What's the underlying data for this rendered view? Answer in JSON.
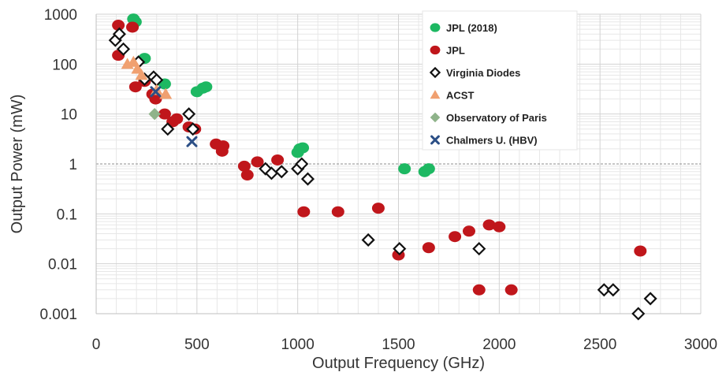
{
  "chart_data": {
    "type": "scatter",
    "xlabel": "Output Frequency (GHz)",
    "ylabel": "Output Power (mW)",
    "xlim": [
      0,
      3000
    ],
    "ylim": [
      0.001,
      1000
    ],
    "yscale": "log",
    "grid": true,
    "legend_position": "top-right",
    "x_ticks": [
      "0",
      "500",
      "1000",
      "1500",
      "2000",
      "2500",
      "3000"
    ],
    "y_ticks": [
      "1000",
      "100",
      "10",
      "1",
      "0.1",
      "0.01",
      "0.001"
    ],
    "series": [
      {
        "name": "JPL (2018)",
        "marker": "circle",
        "color": "#1db862",
        "points": [
          [
            185,
            800
          ],
          [
            195,
            700
          ],
          [
            240,
            130
          ],
          [
            340,
            40
          ],
          [
            500,
            28
          ],
          [
            530,
            33
          ],
          [
            545,
            35
          ],
          [
            1000,
            1.7
          ],
          [
            1010,
            2.0
          ],
          [
            1025,
            2.1
          ],
          [
            1530,
            0.8
          ],
          [
            1630,
            0.7
          ],
          [
            1650,
            0.8
          ]
        ]
      },
      {
        "name": "JPL",
        "marker": "circle",
        "color": "#c0161b",
        "points": [
          [
            110,
            600
          ],
          [
            110,
            150
          ],
          [
            180,
            550
          ],
          [
            195,
            35
          ],
          [
            240,
            45
          ],
          [
            280,
            25
          ],
          [
            295,
            20
          ],
          [
            340,
            10
          ],
          [
            380,
            7
          ],
          [
            400,
            8
          ],
          [
            460,
            5.5
          ],
          [
            490,
            5
          ],
          [
            595,
            2.5
          ],
          [
            625,
            1.8
          ],
          [
            630,
            2.3
          ],
          [
            735,
            0.9
          ],
          [
            750,
            0.6
          ],
          [
            800,
            1.1
          ],
          [
            900,
            1.2
          ],
          [
            1030,
            0.11
          ],
          [
            1200,
            0.11
          ],
          [
            1400,
            0.13
          ],
          [
            1500,
            0.015
          ],
          [
            1650,
            0.021
          ],
          [
            1780,
            0.035
          ],
          [
            1850,
            0.045
          ],
          [
            1900,
            0.003
          ],
          [
            1950,
            0.06
          ],
          [
            2000,
            0.055
          ],
          [
            2060,
            0.003
          ],
          [
            2700,
            0.018
          ]
        ]
      },
      {
        "name": "Virginia Diodes",
        "marker": "diamond",
        "color": "#111111",
        "points": [
          [
            95,
            300
          ],
          [
            115,
            400
          ],
          [
            135,
            200
          ],
          [
            210,
            110
          ],
          [
            240,
            50
          ],
          [
            285,
            55
          ],
          [
            300,
            48
          ],
          [
            355,
            5
          ],
          [
            460,
            10
          ],
          [
            480,
            5
          ],
          [
            840,
            0.8
          ],
          [
            870,
            0.65
          ],
          [
            920,
            0.7
          ],
          [
            1000,
            0.8
          ],
          [
            1020,
            1.0
          ],
          [
            1050,
            0.5
          ],
          [
            1350,
            0.03
          ],
          [
            1505,
            0.02
          ],
          [
            1900,
            0.02
          ],
          [
            2520,
            0.003
          ],
          [
            2565,
            0.003
          ],
          [
            2690,
            0.001
          ],
          [
            2750,
            0.002
          ]
        ]
      },
      {
        "name": "ACST",
        "marker": "triangle",
        "color": "#f0a070",
        "points": [
          [
            155,
            100
          ],
          [
            185,
            110
          ],
          [
            205,
            80
          ],
          [
            225,
            60
          ],
          [
            300,
            30
          ],
          [
            345,
            25
          ]
        ]
      },
      {
        "name": "Observatory of Paris",
        "marker": "diamond",
        "color": "#8fb38a",
        "points": [
          [
            290,
            10
          ]
        ]
      },
      {
        "name": "Chalmers U. (HBV)",
        "marker": "x",
        "color": "#2c4f86",
        "points": [
          [
            295,
            28
          ],
          [
            475,
            2.8
          ]
        ]
      }
    ]
  }
}
